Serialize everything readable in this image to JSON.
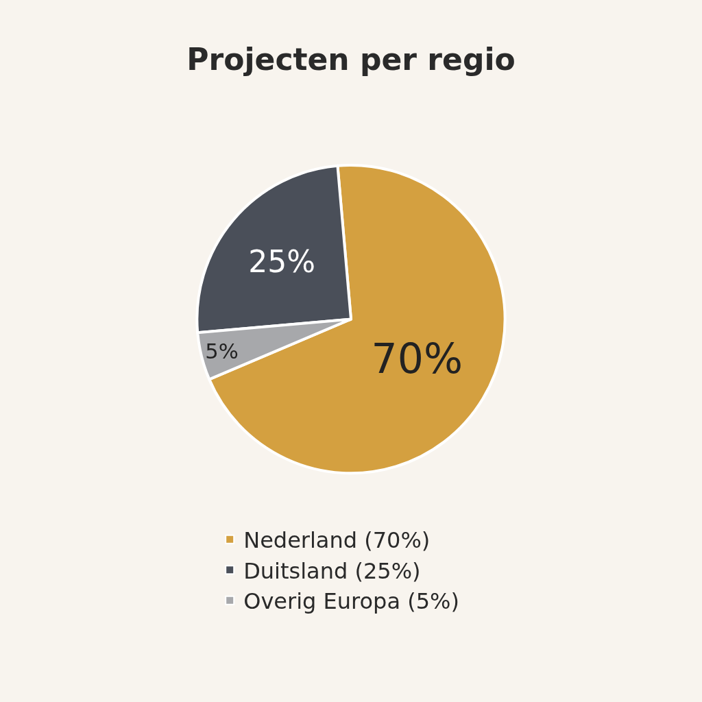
{
  "chart_data": {
    "type": "pie",
    "title": "Projecten per regio",
    "categories": [
      "Nederland (70%)",
      "Duitsland (25%)",
      "Overig Europa (5%)"
    ],
    "values": [
      70,
      25,
      5
    ],
    "value_labels": [
      "70%",
      "25%",
      "5%"
    ],
    "colors": [
      "#d4a040",
      "#4a4f59",
      "#a7a8ab"
    ],
    "legend": "bottom"
  }
}
